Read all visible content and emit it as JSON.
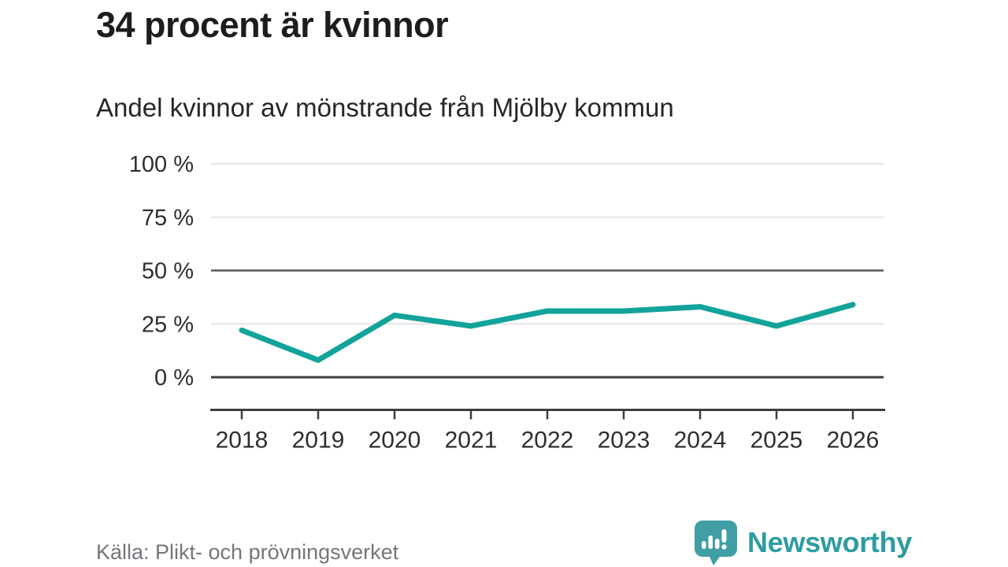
{
  "header": {
    "title": "34 procent är kvinnor",
    "subtitle": "Andel kvinnor av mönstrande från Mjölby kommun"
  },
  "footer": {
    "source": "Källa: Plikt- och prövningsverket",
    "brand": "Newsworthy"
  },
  "colors": {
    "line": "#12a39a",
    "grid": "#e4e4e4",
    "reference_line": "#56565c",
    "axis": "#3e3e3e",
    "axis_text": "#2e2e33",
    "logo_fill": "#3f9fa4",
    "brand_teal": "#2e9da2"
  },
  "chart_data": {
    "type": "line",
    "title": "34 procent är kvinnor",
    "subtitle": "Andel kvinnor av mönstrande från Mjölby kommun",
    "x": [
      2018,
      2019,
      2020,
      2021,
      2022,
      2023,
      2024,
      2025,
      2026
    ],
    "series": [
      {
        "name": "Andel kvinnor av mönstrande",
        "values": [
          22,
          8,
          29,
          24,
          31,
          31,
          33,
          24,
          34
        ]
      }
    ],
    "unit": "%",
    "ylim": [
      0,
      100
    ],
    "yticks": [
      0,
      25,
      50,
      75,
      100
    ],
    "ytick_labels": [
      "0 %",
      "25 %",
      "50 %",
      "75 %",
      "100 %"
    ],
    "reference_line": 50,
    "grid": true,
    "legend": "none"
  }
}
